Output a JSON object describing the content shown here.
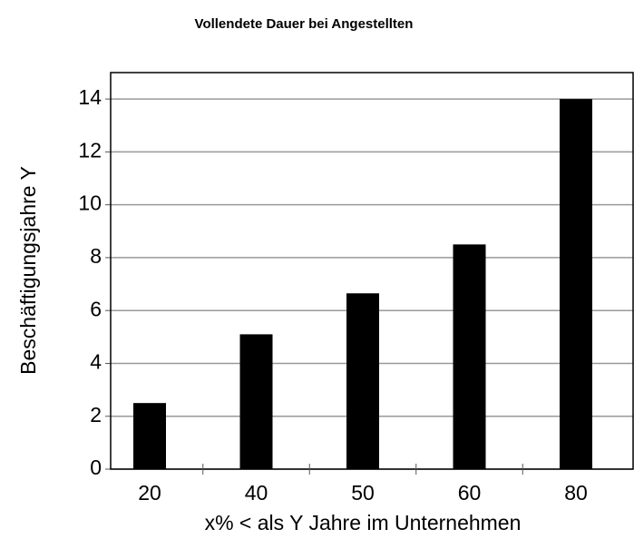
{
  "chart_data": {
    "type": "bar",
    "title": "Vollendete Dauer bei Angestellten",
    "x_label": "x%  < als Y Jahre im Unternehmen",
    "y_label": "Beschäftigungsjahre Y",
    "categories": [
      "20",
      "40",
      "50",
      "60",
      "80"
    ],
    "values": [
      2.5,
      5.1,
      6.65,
      8.5,
      14
    ],
    "color": "#000000",
    "ylim": [
      0,
      15
    ],
    "yticks": [
      0,
      2,
      4,
      6,
      8,
      10,
      12,
      14
    ],
    "grid": true
  }
}
